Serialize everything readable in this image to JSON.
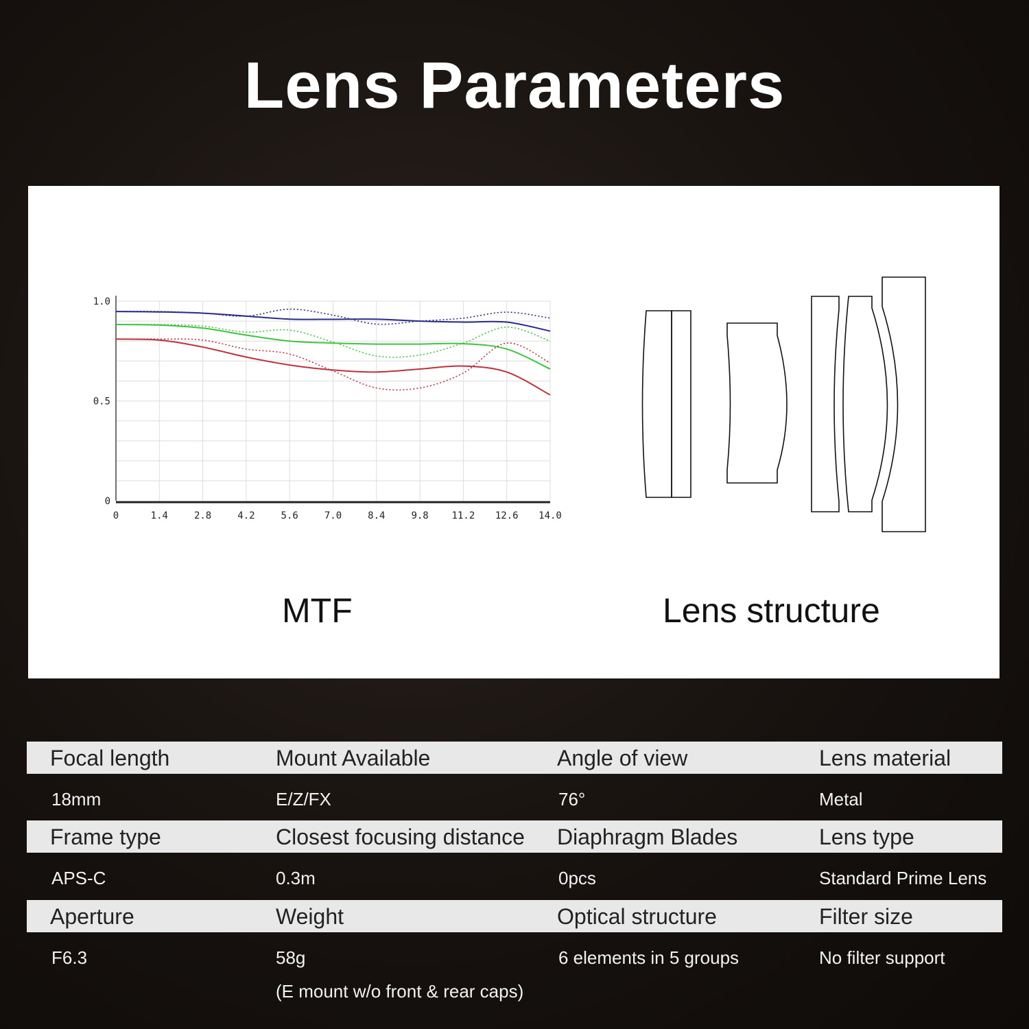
{
  "title": "Lens Parameters",
  "captions": {
    "mtf": "MTF",
    "structure": "Lens structure"
  },
  "chart_data": {
    "type": "line",
    "title": "",
    "xlabel": "",
    "ylabel": "",
    "xlim": [
      0,
      14
    ],
    "ylim": [
      0,
      1
    ],
    "x_ticks": [
      "0",
      "1.4",
      "2.8",
      "4.2",
      "5.6",
      "7.0",
      "8.4",
      "9.8",
      "11.2",
      "12.6",
      "14.0"
    ],
    "y_ticks": [
      "0",
      "0.5",
      "1.0"
    ],
    "grid": true,
    "x": [
      0,
      1.4,
      2.8,
      4.2,
      5.6,
      7.0,
      8.4,
      9.8,
      11.2,
      12.6,
      14.0
    ],
    "series": [
      {
        "color": "#2a2a8a",
        "style": "solid",
        "values": [
          0.948,
          0.946,
          0.94,
          0.925,
          0.91,
          0.909,
          0.91,
          0.9,
          0.895,
          0.895,
          0.85
        ]
      },
      {
        "color": "#2a2a8a",
        "style": "dotted",
        "values": [
          0.948,
          0.948,
          0.94,
          0.925,
          0.96,
          0.93,
          0.885,
          0.9,
          0.915,
          0.945,
          0.915
        ]
      },
      {
        "color": "#3ec43e",
        "style": "solid",
        "values": [
          0.883,
          0.88,
          0.865,
          0.83,
          0.8,
          0.79,
          0.785,
          0.785,
          0.787,
          0.76,
          0.66
        ]
      },
      {
        "color": "#3ec43e",
        "style": "dotted",
        "values": [
          0.883,
          0.883,
          0.875,
          0.845,
          0.855,
          0.795,
          0.725,
          0.73,
          0.79,
          0.87,
          0.8
        ]
      },
      {
        "color": "#c0303a",
        "style": "solid",
        "values": [
          0.81,
          0.805,
          0.77,
          0.72,
          0.68,
          0.655,
          0.645,
          0.66,
          0.675,
          0.645,
          0.53
        ]
      },
      {
        "color": "#c0303a",
        "style": "dotted",
        "values": [
          0.81,
          0.81,
          0.805,
          0.76,
          0.735,
          0.65,
          0.565,
          0.565,
          0.64,
          0.79,
          0.69
        ]
      }
    ]
  },
  "specs": [
    [
      {
        "label": "Focal length",
        "value": "18mm"
      },
      {
        "label": "Mount Available",
        "value": "E/Z/FX"
      },
      {
        "label": "Angle of view",
        "value": "76°"
      },
      {
        "label": "Lens material",
        "value": "Metal"
      }
    ],
    [
      {
        "label": "Frame type",
        "value": "APS-C"
      },
      {
        "label": "Closest focusing distance",
        "value": "0.3m"
      },
      {
        "label": "Diaphragm Blades",
        "value": "0pcs"
      },
      {
        "label": "Lens type",
        "value": "Standard Prime Lens"
      }
    ],
    [
      {
        "label": "Aperture",
        "value": "F6.3"
      },
      {
        "label": "Weight",
        "value": "58g",
        "note": "(E mount w/o front & rear caps)"
      },
      {
        "label": "Optical structure",
        "value": "6 elements in 5 groups"
      },
      {
        "label": "Filter size",
        "value": "No filter support"
      }
    ]
  ]
}
